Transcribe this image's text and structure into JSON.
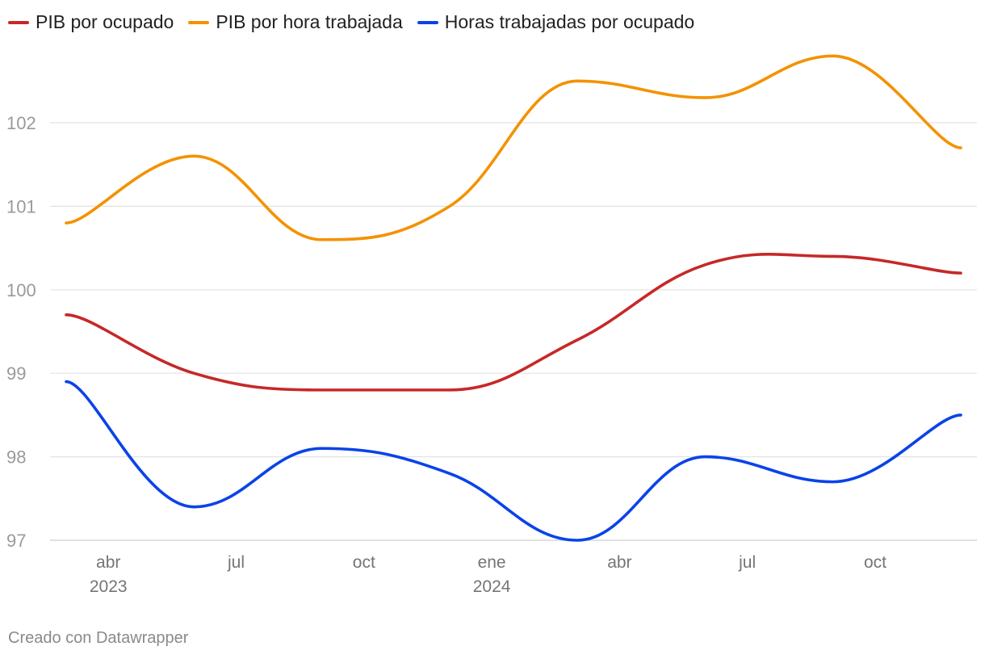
{
  "chart_data": {
    "type": "line",
    "title": "",
    "xlabel": "",
    "ylabel": "",
    "ylim": [
      97,
      103
    ],
    "y_ticks": [
      97,
      98,
      99,
      100,
      101,
      102
    ],
    "grid": true,
    "legend_position": "top-left",
    "x": [
      "2023-Q1",
      "2023-Q2",
      "2023-Q3",
      "2023-Q4",
      "2024-Q1",
      "2024-Q2",
      "2024-Q3",
      "2024-Q4"
    ],
    "x_tick_labels": [
      {
        "month": "abr",
        "year": "2023"
      },
      {
        "month": "jul",
        "year": ""
      },
      {
        "month": "oct",
        "year": ""
      },
      {
        "month": "ene",
        "year": "2024"
      },
      {
        "month": "abr",
        "year": ""
      },
      {
        "month": "jul",
        "year": ""
      },
      {
        "month": "oct",
        "year": ""
      }
    ],
    "series": [
      {
        "name": "PIB por ocupado",
        "color": "#c62828",
        "values": [
          99.7,
          99.0,
          98.8,
          98.8,
          99.4,
          100.3,
          100.4,
          100.2
        ]
      },
      {
        "name": "PIB por hora trabajada",
        "color": "#f39200",
        "values": [
          100.8,
          101.6,
          100.6,
          101.0,
          102.5,
          102.3,
          102.8,
          101.7
        ]
      },
      {
        "name": "Horas trabajadas por ocupado",
        "color": "#0a43e8",
        "values": [
          98.9,
          97.4,
          98.1,
          97.8,
          97.0,
          98.0,
          97.7,
          98.5
        ]
      }
    ]
  },
  "footer": {
    "credit": "Creado con Datawrapper"
  }
}
